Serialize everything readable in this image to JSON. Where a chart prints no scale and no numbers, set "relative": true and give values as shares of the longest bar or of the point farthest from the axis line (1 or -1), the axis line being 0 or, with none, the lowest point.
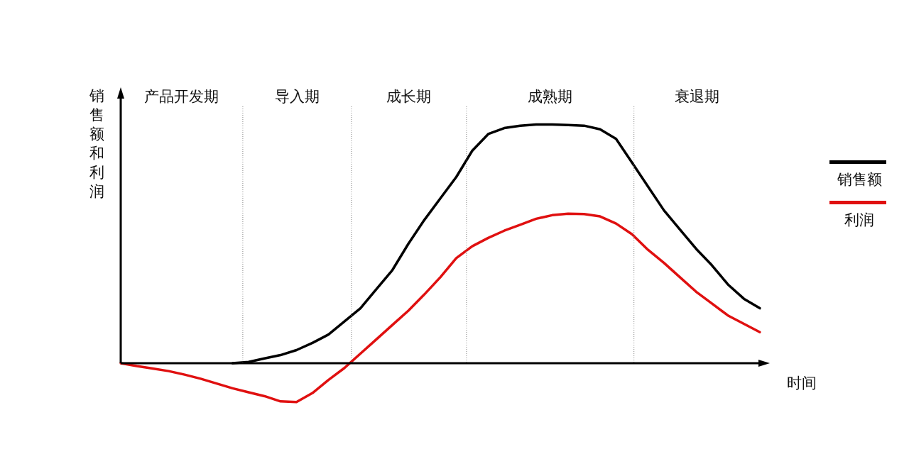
{
  "chart_data": {
    "type": "line",
    "xlabel": "时间",
    "ylabel": "销售额和利润",
    "relative": true,
    "marker": "none",
    "legend": "right",
    "annotations": [
      "产品开发期",
      "导入期",
      "成长期",
      "成熟期",
      "衰退期"
    ],
    "categories": [
      null,
      null,
      null,
      null,
      null,
      null,
      null,
      null,
      null,
      null,
      null,
      null,
      null,
      null,
      null,
      null,
      null,
      null,
      null,
      null,
      null,
      null,
      null,
      null,
      null,
      null,
      null,
      null,
      null,
      null,
      null,
      null,
      null,
      null,
      null,
      null,
      null,
      null,
      null,
      null,
      null
    ],
    "series": [
      {
        "name": "销售额",
        "color": "#000000",
        "values": [
          null,
          null,
          null,
          null,
          null,
          null,
          null,
          0,
          0.005,
          0.02,
          0.034,
          0.055,
          0.085,
          0.12,
          0.175,
          0.23,
          0.31,
          0.39,
          0.5,
          0.6,
          0.69,
          0.78,
          0.89,
          0.96,
          0.985,
          0.995,
          1,
          1,
          0.998,
          0.995,
          0.98,
          0.94,
          0.84,
          0.74,
          0.64,
          0.56,
          0.48,
          0.41,
          0.33,
          0.27,
          0.23
        ]
      },
      {
        "name": "利润",
        "color": "#e01010",
        "values": [
          0,
          -0.012,
          -0.022,
          -0.033,
          -0.048,
          -0.065,
          -0.085,
          -0.105,
          -0.122,
          -0.138,
          -0.16,
          -0.163,
          -0.125,
          -0.07,
          -0.02,
          0.04,
          0.1,
          0.16,
          0.22,
          0.288,
          0.36,
          0.44,
          0.49,
          0.525,
          0.555,
          0.58,
          0.605,
          0.62,
          0.626,
          0.625,
          0.615,
          0.585,
          0.54,
          0.475,
          0.42,
          0.36,
          0.3,
          0.25,
          0.2,
          0.165,
          0.13
        ]
      }
    ]
  }
}
